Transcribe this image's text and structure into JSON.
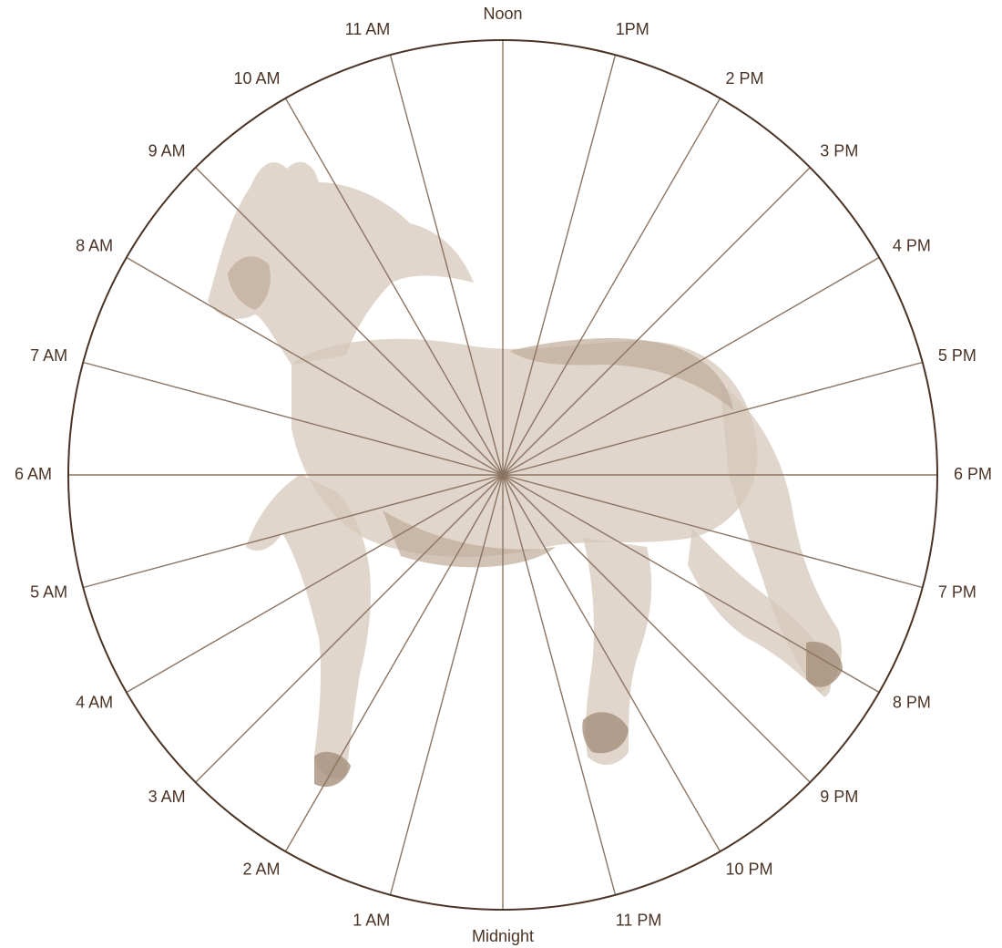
{
  "diagram": {
    "hour_labels": [
      "Noon",
      "1PM",
      "2 PM",
      "3 PM",
      "4 PM",
      "5 PM",
      "6 PM",
      "7 PM",
      "8 PM",
      "9 PM",
      "10 PM",
      "11 PM",
      "Midnight",
      "1 AM",
      "2 AM",
      "3 AM",
      "4 AM",
      "5 AM",
      "6 AM",
      "7 AM",
      "8 AM",
      "9 AM",
      "10 AM",
      "11 AM"
    ],
    "segment_count": 24,
    "colors": {
      "rim": "#4a3426",
      "spokes": "#8c7462",
      "labels": "#4a3426",
      "background_illustration": "#d6c8bb"
    },
    "background_illustration_icon": "horse-icon"
  }
}
